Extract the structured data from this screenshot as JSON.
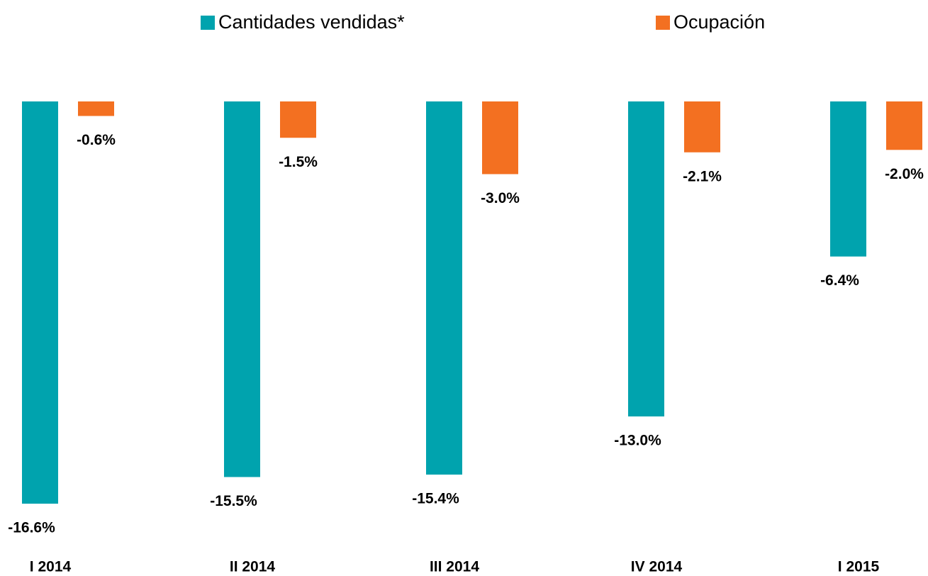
{
  "chart_data": {
    "type": "bar",
    "categories": [
      "I 2014",
      "II 2014",
      "III 2014",
      "IV 2014",
      "I 2015"
    ],
    "series": [
      {
        "name": "Cantidades vendidas*",
        "color": "#00a3ae",
        "values": [
          -16.6,
          -15.5,
          -15.4,
          -13.0,
          -6.4
        ],
        "value_labels": [
          "-16.6%",
          "-15.5%",
          "-15.4%",
          "-13.0%",
          "-6.4%"
        ]
      },
      {
        "name": "Ocupación",
        "color": "#f37021",
        "values": [
          -0.6,
          -1.5,
          -3.0,
          -2.1,
          -2.0
        ],
        "value_labels": [
          "-0.6%",
          "-1.5%",
          "-3.0%",
          "-2.1%",
          "-2.0%"
        ]
      }
    ],
    "ylim": [
      -17,
      0
    ],
    "legend": "top"
  }
}
